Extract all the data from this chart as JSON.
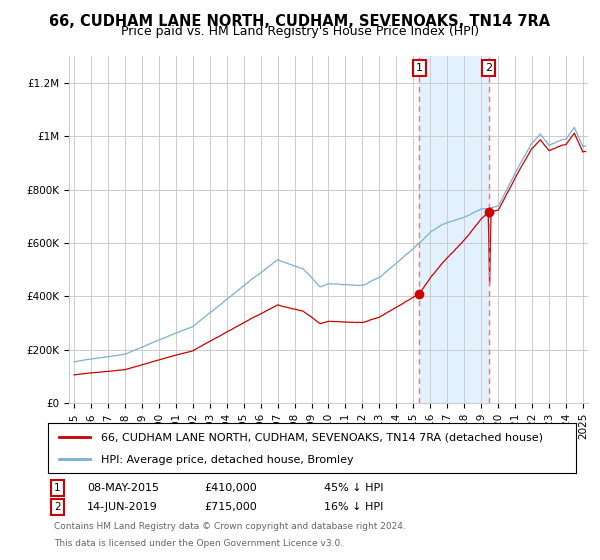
{
  "title": "66, CUDHAM LANE NORTH, CUDHAM, SEVENOAKS, TN14 7RA",
  "subtitle": "Price paid vs. HM Land Registry's House Price Index (HPI)",
  "ylim": [
    0,
    1300000
  ],
  "yticks": [
    0,
    200000,
    400000,
    600000,
    800000,
    1000000,
    1200000
  ],
  "ytick_labels": [
    "£0",
    "£200K",
    "£400K",
    "£600K",
    "£800K",
    "£1M",
    "£1.2M"
  ],
  "background_color": "#ffffff",
  "grid_color": "#cccccc",
  "sale1_year": 2015.36,
  "sale1_price": 410000,
  "sale1_label": "08-MAY-2015",
  "sale2_year": 2019.45,
  "sale2_price": 715000,
  "sale2_label": "14-JUN-2019",
  "legend_line1": "66, CUDHAM LANE NORTH, CUDHAM, SEVENOAKS, TN14 7RA (detached house)",
  "legend_line2": "HPI: Average price, detached house, Bromley",
  "footnote1": "Contains HM Land Registry data © Crown copyright and database right 2024.",
  "footnote2": "This data is licensed under the Open Government Licence v3.0.",
  "red_color": "#cc0000",
  "blue_color": "#7ab0d4",
  "shade_color": "#ddeeff",
  "dashed_color": "#e08080",
  "title_fontsize": 10.5,
  "subtitle_fontsize": 9,
  "tick_fontsize": 7.5,
  "legend_fontsize": 8,
  "xstart": 1995.0,
  "xend": 2025.2
}
